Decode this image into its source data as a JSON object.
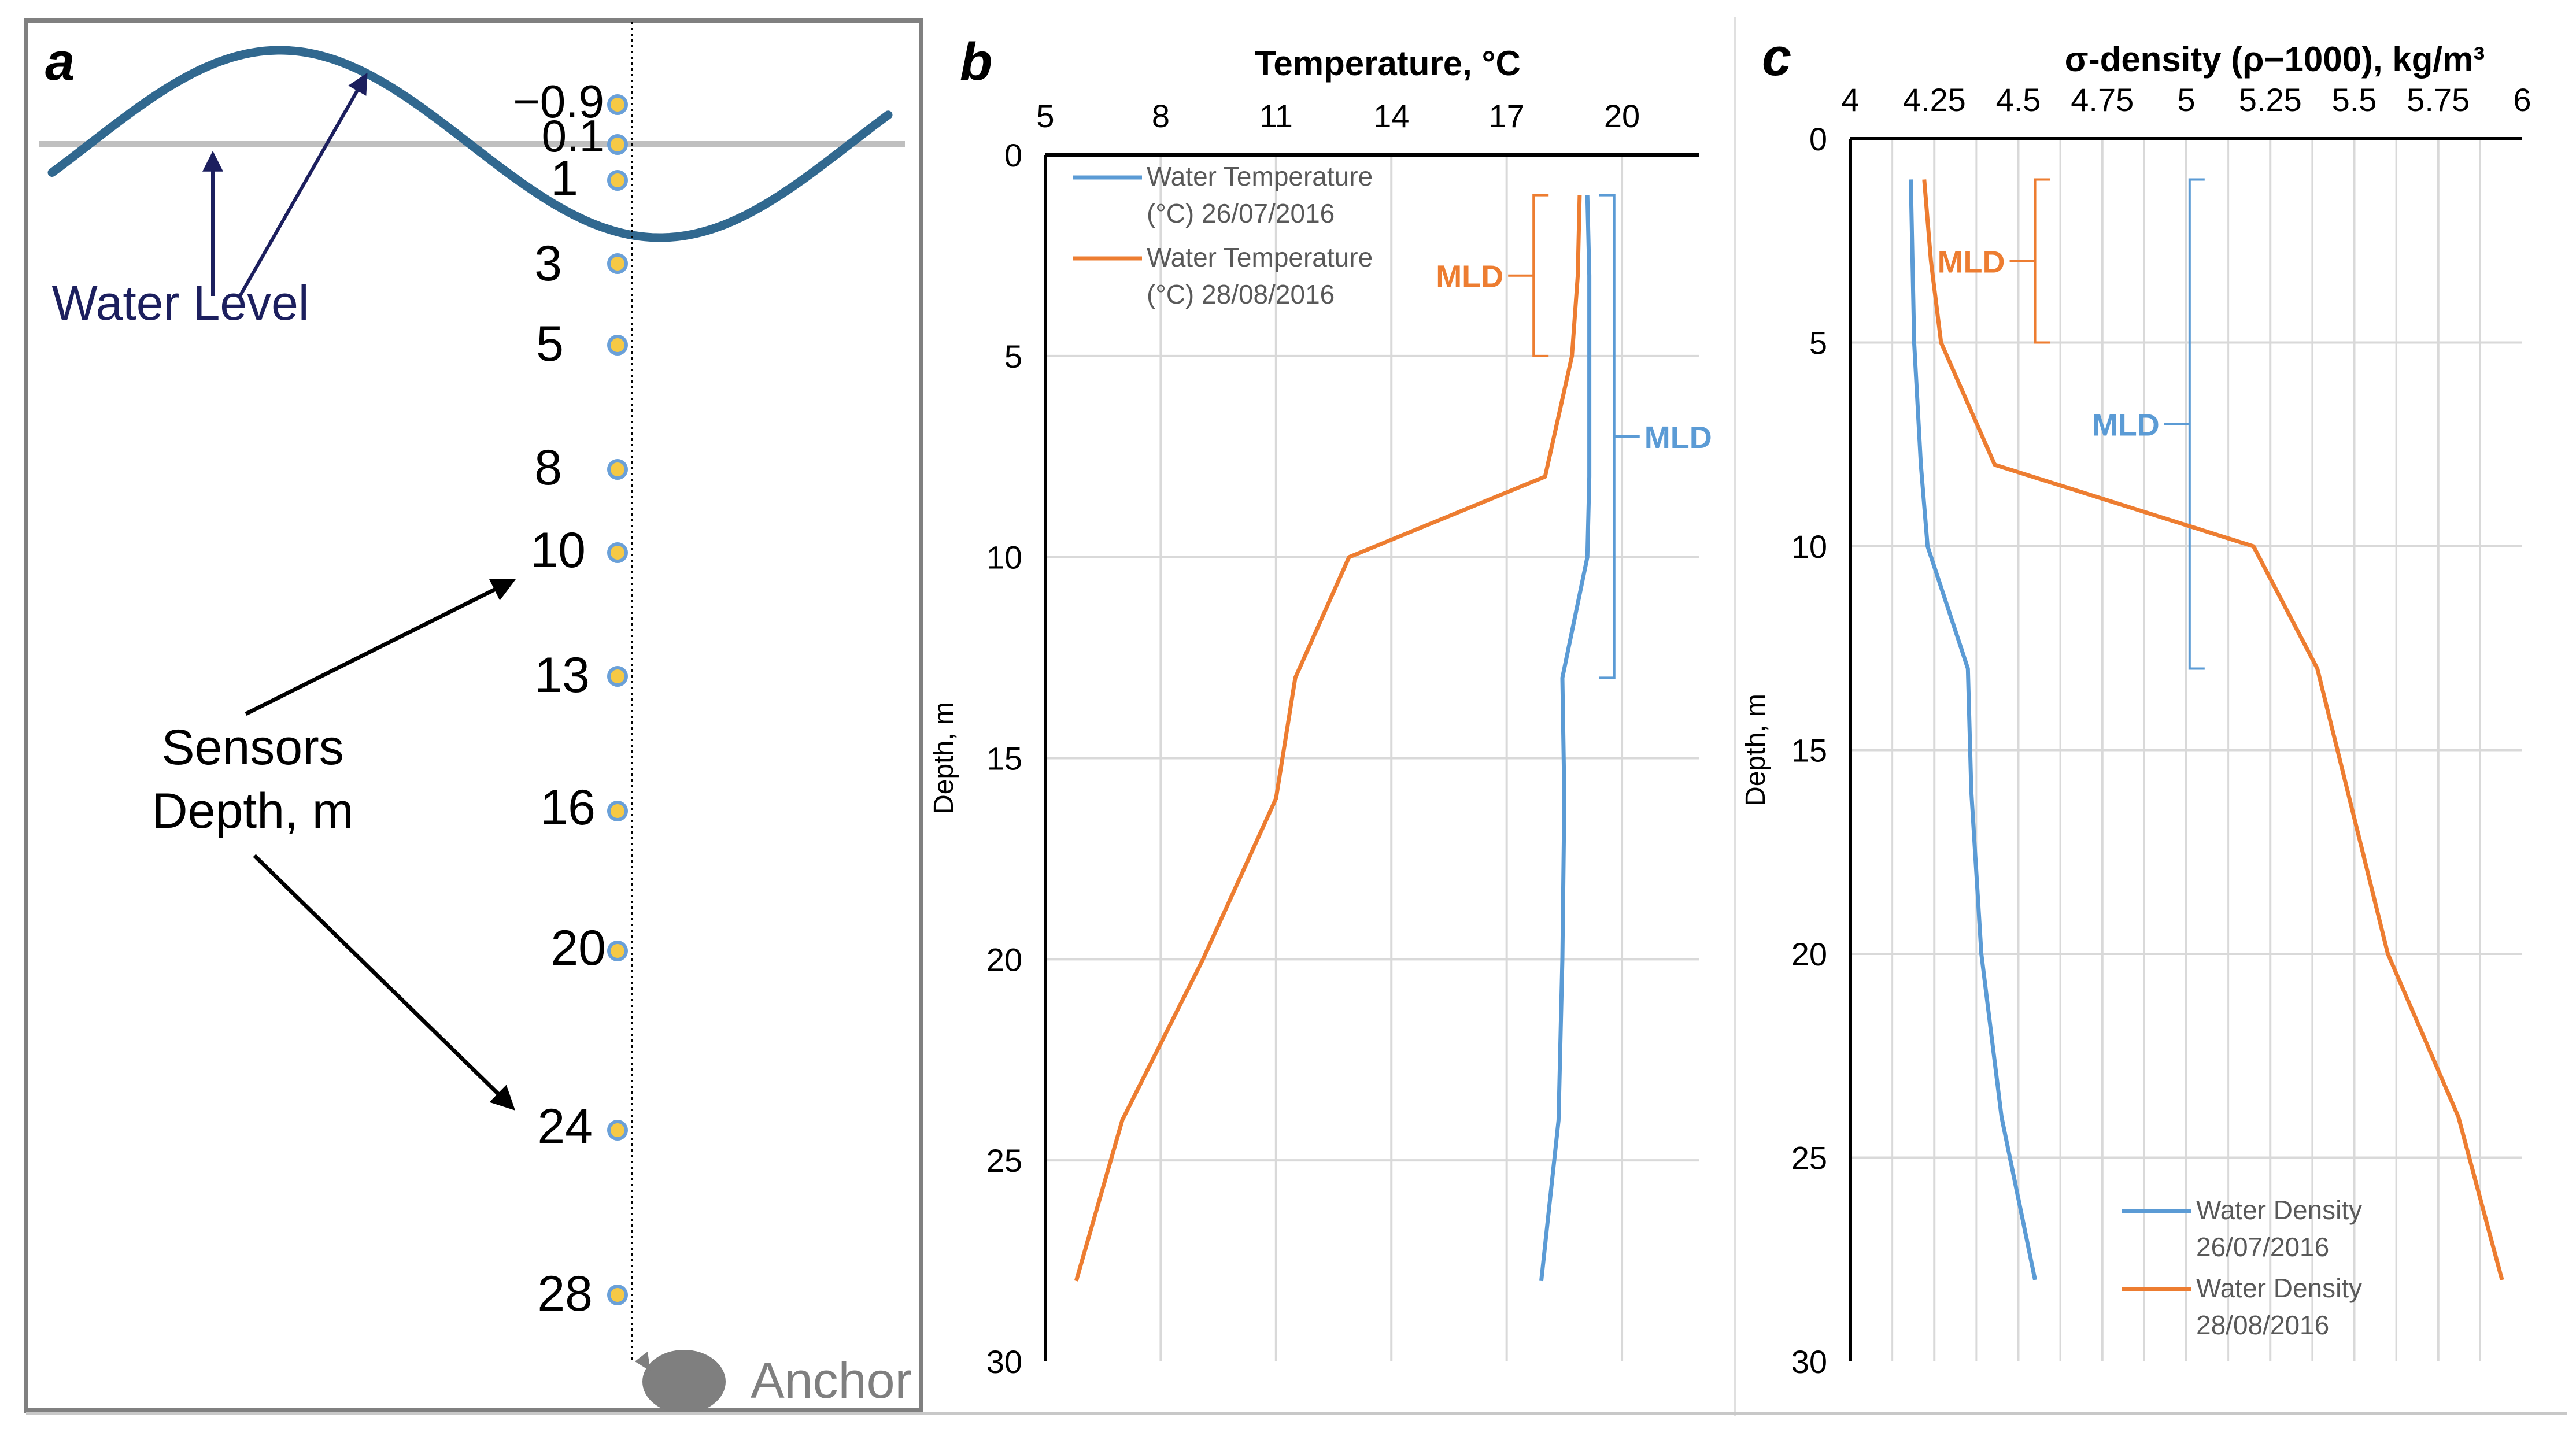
{
  "panel_a": {
    "letter": "a",
    "water_level_label": "Water Level",
    "sensors_label_line1": "Sensors",
    "sensors_label_line2": "Depth, m",
    "anchor_label": "Anchor",
    "sensor_depths": [
      "−0.9",
      "0.1",
      "1",
      "3",
      "5",
      "8",
      "10",
      "13",
      "16",
      "20",
      "24",
      "28"
    ]
  },
  "chart_data": [
    {
      "panel": "b",
      "type": "line",
      "title": "Temperature, °C",
      "xlabel": "Temperature, °C",
      "ylabel": "Depth, m",
      "xlim": [
        5,
        22
      ],
      "ylim": [
        0,
        30
      ],
      "y_inverted": true,
      "x_axis_position": "top",
      "xticks": [
        5,
        8,
        11,
        14,
        17,
        20
      ],
      "xtick_labels": [
        "5",
        "8",
        "11",
        "14",
        "17",
        "20"
      ],
      "yticks": [
        0,
        5,
        10,
        15,
        20,
        25,
        30
      ],
      "ytick_labels": [
        "0",
        "5",
        "10",
        "15",
        "20",
        "25",
        "30"
      ],
      "grid": "major gridlines",
      "legend_position": "top-left",
      "series": [
        {
          "name": "Water Temperature (°C) 26/07/2016",
          "legend_line1": "Water Temperature",
          "legend_line2": "(°C) 26/07/2016",
          "color": "#5b9bd5",
          "depth": [
            1,
            3,
            5,
            8,
            10,
            13,
            16,
            20,
            24,
            28
          ],
          "values": [
            19.1,
            19.15,
            19.15,
            19.15,
            19.1,
            18.45,
            18.5,
            18.45,
            18.35,
            17.9
          ]
        },
        {
          "name": "Water Temperature (°C) 28/08/2016",
          "legend_line1": "Water Temperature",
          "legend_line2": "(°C) 28/08/2016",
          "color": "#ed7d31",
          "depth": [
            1,
            3,
            5,
            8,
            10,
            13,
            16,
            20,
            24,
            28
          ],
          "values": [
            18.9,
            18.85,
            18.7,
            18.0,
            12.9,
            11.5,
            11.0,
            9.1,
            7.0,
            5.8
          ]
        }
      ],
      "annotations": [
        {
          "text": "MLD",
          "color": "#ed7d31",
          "depth_range": [
            1,
            5
          ],
          "at_x": 17.7
        },
        {
          "text": "MLD",
          "color": "#5b9bd5",
          "depth_range": [
            1,
            13
          ],
          "at_x": 19.8
        }
      ]
    },
    {
      "panel": "c",
      "type": "line",
      "title": "σ-density (ρ−1000), kg/m³",
      "xlabel": "σ-density (ρ−1000), kg/m³",
      "ylabel": "Depth, m",
      "xlim": [
        4,
        6
      ],
      "ylim": [
        0,
        30
      ],
      "y_inverted": true,
      "x_axis_position": "top",
      "xticks": [
        4,
        4.25,
        4.5,
        4.75,
        5,
        5.25,
        5.5,
        5.75,
        6
      ],
      "xtick_labels": [
        "4",
        "4.25",
        "4.5",
        "4.75",
        "5",
        "5.25",
        "5.5",
        "5.75",
        "6"
      ],
      "yticks": [
        0,
        5,
        10,
        15,
        20,
        25,
        30
      ],
      "ytick_labels": [
        "0",
        "5",
        "10",
        "15",
        "20",
        "25",
        "30"
      ],
      "grid": "major and minor gridlines",
      "legend_position": "bottom-right",
      "series": [
        {
          "name": "Water Density 26/07/2016",
          "legend_line1": "Water Density",
          "legend_line2": "26/07/2016",
          "color": "#5b9bd5",
          "depth": [
            1,
            3,
            5,
            8,
            10,
            13,
            16,
            20,
            24,
            28
          ],
          "values": [
            4.18,
            4.185,
            4.19,
            4.21,
            4.23,
            4.35,
            4.36,
            4.39,
            4.45,
            4.55
          ]
        },
        {
          "name": "Water Density 28/08/2016",
          "legend_line1": "Water Density",
          "legend_line2": "28/08/2016",
          "color": "#ed7d31",
          "depth": [
            1,
            3,
            5,
            8,
            10,
            13,
            16,
            20,
            24,
            28
          ],
          "values": [
            4.22,
            4.24,
            4.27,
            4.43,
            5.2,
            5.39,
            5.48,
            5.6,
            5.81,
            5.94
          ]
        }
      ],
      "annotations": [
        {
          "text": "MLD",
          "color": "#ed7d31",
          "depth_range": [
            1,
            5
          ],
          "at_x": 4.55
        },
        {
          "text": "MLD",
          "color": "#5b9bd5",
          "depth_range": [
            1,
            13
          ],
          "at_x": 5.01
        }
      ]
    }
  ],
  "colors": {
    "blue": "#5b9bd5",
    "orange": "#ed7d31",
    "wave": "#31688f",
    "navy": "#1c1f5e",
    "grid": "#d9d9d9",
    "border": "#808080",
    "sensor_fill": "#f6c945",
    "sensor_ring": "#6aa0d8",
    "anchor": "#7f7f7f"
  }
}
